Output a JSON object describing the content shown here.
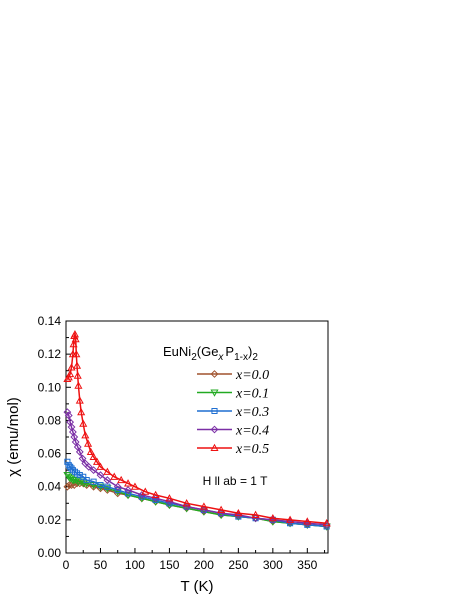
{
  "chart_data": {
    "type": "scatter",
    "title": "",
    "xlabel": "T (K)",
    "ylabel": "χ (emu/mol)",
    "xlim": [
      0,
      380
    ],
    "ylim": [
      0.0,
      0.14
    ],
    "x_ticks": [
      "0",
      "50",
      "100",
      "150",
      "200",
      "250",
      "300",
      "350"
    ],
    "y_ticks": [
      "0.00",
      "0.02",
      "0.04",
      "0.06",
      "0.08",
      "0.10",
      "0.12",
      "0.14"
    ],
    "grid": false,
    "legend": {
      "title_main": "EuNi",
      "title_sub1": "2",
      "title_mid": "(Ge",
      "title_sub2": "x",
      "title_mid2": "P",
      "title_sub3": "1-x",
      "title_end": ")",
      "title_sub4": "2",
      "placement": "top-right"
    },
    "annotation": "H ll ab = 1 T",
    "series": [
      {
        "name": "x=0.0",
        "color": "#a0522d",
        "marker": "diamond",
        "points": [
          [
            2,
            0.04
          ],
          [
            5,
            0.041
          ],
          [
            8,
            0.041
          ],
          [
            12,
            0.041
          ],
          [
            16,
            0.042
          ],
          [
            20,
            0.042
          ],
          [
            25,
            0.042
          ],
          [
            30,
            0.041
          ],
          [
            40,
            0.04
          ],
          [
            50,
            0.039
          ],
          [
            60,
            0.038
          ],
          [
            75,
            0.036
          ],
          [
            90,
            0.035
          ],
          [
            110,
            0.033
          ],
          [
            130,
            0.031
          ],
          [
            150,
            0.029
          ],
          [
            175,
            0.027
          ],
          [
            200,
            0.025
          ],
          [
            225,
            0.023
          ],
          [
            250,
            0.022
          ],
          [
            275,
            0.021
          ],
          [
            300,
            0.019
          ],
          [
            325,
            0.018
          ],
          [
            350,
            0.017
          ],
          [
            378,
            0.016
          ]
        ]
      },
      {
        "name": "x=0.1",
        "color": "#22aa22",
        "marker": "triangle-down",
        "points": [
          [
            2,
            0.047
          ],
          [
            4,
            0.046
          ],
          [
            6,
            0.045
          ],
          [
            8,
            0.045
          ],
          [
            10,
            0.044
          ],
          [
            12,
            0.044
          ],
          [
            15,
            0.044
          ],
          [
            18,
            0.043
          ],
          [
            22,
            0.043
          ],
          [
            26,
            0.042
          ],
          [
            30,
            0.042
          ],
          [
            40,
            0.041
          ],
          [
            50,
            0.04
          ],
          [
            60,
            0.039
          ],
          [
            75,
            0.037
          ],
          [
            90,
            0.035
          ],
          [
            110,
            0.033
          ],
          [
            130,
            0.031
          ],
          [
            150,
            0.029
          ],
          [
            175,
            0.027
          ],
          [
            200,
            0.025
          ],
          [
            225,
            0.023
          ],
          [
            250,
            0.022
          ],
          [
            275,
            0.021
          ],
          [
            300,
            0.019
          ],
          [
            325,
            0.018
          ],
          [
            350,
            0.017
          ],
          [
            378,
            0.016
          ]
        ]
      },
      {
        "name": "x=0.3",
        "color": "#1f6fd1",
        "marker": "square",
        "points": [
          [
            2,
            0.055
          ],
          [
            4,
            0.053
          ],
          [
            6,
            0.052
          ],
          [
            8,
            0.051
          ],
          [
            10,
            0.05
          ],
          [
            13,
            0.049
          ],
          [
            16,
            0.048
          ],
          [
            20,
            0.047
          ],
          [
            25,
            0.046
          ],
          [
            30,
            0.044
          ],
          [
            40,
            0.043
          ],
          [
            50,
            0.041
          ],
          [
            60,
            0.04
          ],
          [
            75,
            0.038
          ],
          [
            90,
            0.036
          ],
          [
            110,
            0.034
          ],
          [
            130,
            0.032
          ],
          [
            150,
            0.03
          ],
          [
            175,
            0.028
          ],
          [
            200,
            0.026
          ],
          [
            225,
            0.024
          ],
          [
            250,
            0.022
          ],
          [
            275,
            0.021
          ],
          [
            300,
            0.02
          ],
          [
            325,
            0.018
          ],
          [
            350,
            0.017
          ],
          [
            378,
            0.016
          ]
        ]
      },
      {
        "name": "x=0.4",
        "color": "#7b2fa6",
        "marker": "diamond",
        "points": [
          [
            2,
            0.085
          ],
          [
            4,
            0.083
          ],
          [
            6,
            0.079
          ],
          [
            8,
            0.076
          ],
          [
            10,
            0.073
          ],
          [
            12,
            0.07
          ],
          [
            14,
            0.067
          ],
          [
            17,
            0.064
          ],
          [
            20,
            0.061
          ],
          [
            24,
            0.057
          ],
          [
            28,
            0.054
          ],
          [
            33,
            0.052
          ],
          [
            40,
            0.05
          ],
          [
            50,
            0.047
          ],
          [
            60,
            0.044
          ],
          [
            75,
            0.04
          ],
          [
            90,
            0.038
          ],
          [
            110,
            0.035
          ],
          [
            130,
            0.033
          ],
          [
            150,
            0.031
          ],
          [
            175,
            0.028
          ],
          [
            200,
            0.026
          ],
          [
            225,
            0.024
          ],
          [
            250,
            0.023
          ],
          [
            275,
            0.021
          ],
          [
            300,
            0.02
          ],
          [
            325,
            0.019
          ],
          [
            350,
            0.018
          ],
          [
            378,
            0.017
          ]
        ]
      },
      {
        "name": "x=0.5",
        "color": "#ee1111",
        "marker": "triangle-up",
        "points": [
          [
            2,
            0.105
          ],
          [
            4,
            0.106
          ],
          [
            6,
            0.108
          ],
          [
            8,
            0.112
          ],
          [
            10,
            0.12
          ],
          [
            11,
            0.126
          ],
          [
            12,
            0.131
          ],
          [
            13,
            0.132
          ],
          [
            14,
            0.129
          ],
          [
            15,
            0.12
          ],
          [
            16,
            0.113
          ],
          [
            17,
            0.107
          ],
          [
            18,
            0.101
          ],
          [
            20,
            0.092
          ],
          [
            22,
            0.085
          ],
          [
            25,
            0.078
          ],
          [
            28,
            0.071
          ],
          [
            32,
            0.066
          ],
          [
            36,
            0.061
          ],
          [
            40,
            0.058
          ],
          [
            45,
            0.055
          ],
          [
            50,
            0.052
          ],
          [
            60,
            0.049
          ],
          [
            70,
            0.046
          ],
          [
            80,
            0.044
          ],
          [
            90,
            0.042
          ],
          [
            100,
            0.04
          ],
          [
            115,
            0.037
          ],
          [
            130,
            0.035
          ],
          [
            150,
            0.033
          ],
          [
            175,
            0.03
          ],
          [
            200,
            0.028
          ],
          [
            225,
            0.026
          ],
          [
            250,
            0.024
          ],
          [
            275,
            0.023
          ],
          [
            300,
            0.021
          ],
          [
            325,
            0.02
          ],
          [
            350,
            0.019
          ],
          [
            378,
            0.018
          ]
        ]
      }
    ]
  }
}
